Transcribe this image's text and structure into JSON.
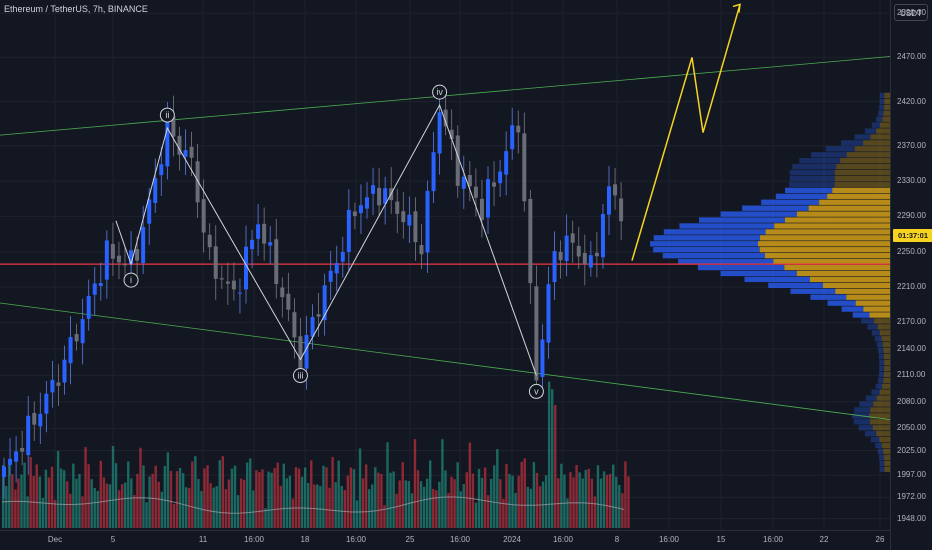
{
  "header": {
    "symbol_title": "Ethereum / TetherUS, 7h, BINANCE"
  },
  "price_axis": {
    "currency": "USDT",
    "ticks": [
      "2520.00",
      "2470.00",
      "2420.00",
      "2370.00",
      "2330.00",
      "2290.00",
      "2250.00",
      "2210.00",
      "2170.00",
      "2140.00",
      "2110.00",
      "2080.00",
      "2050.00",
      "2025.00",
      "1997.00",
      "1972.00",
      "1948.00"
    ],
    "countdown": "01:37:01"
  },
  "time_axis": {
    "ticks": [
      "Dec",
      "5",
      "11",
      "16:00",
      "18",
      "16:00",
      "25",
      "16:00",
      "2024",
      "16:00",
      "8",
      "16:00",
      "15",
      "16:00",
      "22",
      "26"
    ]
  },
  "wave_labels": [
    "i",
    "ii",
    "iii",
    "iv",
    "v"
  ],
  "colors": {
    "background": "#131722",
    "bull_candle": "#2962ff",
    "bear_candle": "#787b86",
    "channel_line": "#4caf50",
    "wave_line": "#d1d4dc",
    "projection_line": "#f7d31f",
    "support_line": "#f23645",
    "volume_up": "#22ab94",
    "volume_down": "#f23645",
    "profile_gold": "#d4a017",
    "profile_blue": "#2962ff",
    "countdown_badge": "#f7d31f"
  },
  "chart_data": {
    "type": "candlestick",
    "ylim": [
      1935,
      2535
    ],
    "channel": {
      "upper": [
        [
          0,
          2382
        ],
        [
          890,
          2471
        ]
      ],
      "lower": [
        [
          0,
          2192
        ],
        [
          890,
          2060
        ]
      ]
    },
    "support_price": 2236,
    "wave_points": [
      {
        "label": "i",
        "x_idx": 21,
        "price": 2236
      },
      {
        "label": "ii",
        "x_idx": 27,
        "price": 2390
      },
      {
        "label": "iii",
        "x_idx": 49,
        "price": 2128
      },
      {
        "label": "iv",
        "x_idx": 72,
        "price": 2416
      },
      {
        "label": "v",
        "x_idx": 88,
        "price": 2110
      }
    ],
    "projection_prices": [
      2240,
      2470,
      2385,
      2530
    ],
    "volume_profile": {
      "price_low": 2000,
      "price_high": 2430,
      "value_area": [
        2170,
        2320
      ]
    }
  }
}
